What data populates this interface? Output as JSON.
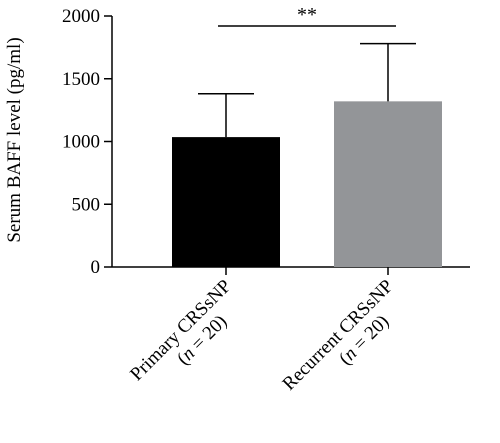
{
  "chart_data": {
    "type": "bar",
    "title": "",
    "xlabel": "",
    "ylabel": "Serum BAFF level (pg/ml)",
    "ylim": [
      0,
      2000
    ],
    "yticks": [
      0,
      500,
      1000,
      1500,
      2000
    ],
    "grid": false,
    "categories": [
      {
        "line1": "Primary CRSsNP",
        "n_symbol": "n",
        "n_rest": " = 20)"
      },
      {
        "line1": "Recurrent CRSsNP",
        "n_symbol": "n",
        "n_rest": " = 20)"
      }
    ],
    "values": [
      1035,
      1320
    ],
    "error_upper": [
      345,
      460
    ],
    "bar_colors": [
      "#000000",
      "#939598"
    ],
    "annotations": [
      {
        "text": "**",
        "between": [
          0,
          1
        ],
        "y": 1920
      }
    ]
  }
}
